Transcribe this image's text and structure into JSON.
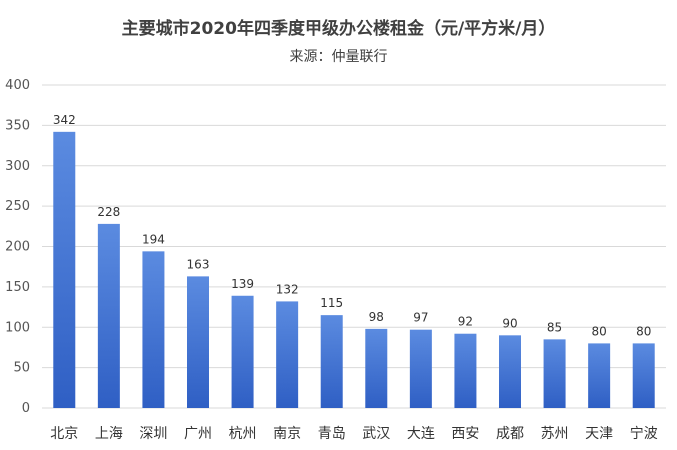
{
  "chart_data": {
    "type": "bar",
    "title": "主要城市2020年四季度甲级办公楼租金（元/平方米/月）",
    "subtitle": "来源：仲量联行",
    "xlabel": "",
    "ylabel": "",
    "categories": [
      "北京",
      "上海",
      "深圳",
      "广州",
      "杭州",
      "南京",
      "青岛",
      "武汉",
      "大连",
      "西安",
      "成都",
      "苏州",
      "天津",
      "宁波"
    ],
    "values": [
      342,
      228,
      194,
      163,
      139,
      132,
      115,
      98,
      97,
      92,
      90,
      85,
      80,
      80
    ],
    "ylim": [
      0,
      400
    ],
    "yticks": [
      0,
      50,
      100,
      150,
      200,
      250,
      300,
      350,
      400
    ],
    "grid": true,
    "legend": "none",
    "bar_gradient": [
      "#5b8be0",
      "#2f5fc4"
    ]
  }
}
